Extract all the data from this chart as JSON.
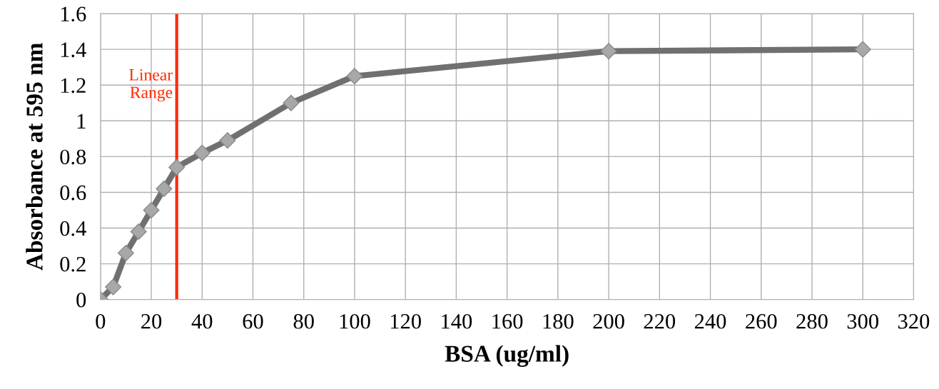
{
  "chart_data": {
    "type": "line",
    "xlabel": "BSA (ug/ml)",
    "ylabel": "Absorbance at 595 nm",
    "x": [
      0,
      5,
      10,
      15,
      20,
      25,
      30,
      40,
      50,
      75,
      100,
      200,
      300
    ],
    "series": [
      {
        "color": "#707070",
        "values": [
          0,
          0.07,
          0.26,
          0.38,
          0.5,
          0.62,
          0.74,
          0.82,
          0.89,
          1.1,
          1.25,
          1.39,
          1.4
        ]
      }
    ],
    "marker": "diamond",
    "grid": true,
    "xlim": [
      0,
      320
    ],
    "xticks": [
      0,
      20,
      40,
      60,
      80,
      100,
      120,
      140,
      160,
      180,
      200,
      220,
      240,
      260,
      280,
      300,
      320
    ],
    "ylim": [
      0,
      1.6
    ],
    "yticks": [
      0,
      0.2,
      0.4,
      0.6,
      0.8,
      1,
      1.2,
      1.4,
      1.6
    ],
    "ref_lines": [
      {
        "axis": "x",
        "value": 30,
        "label": "Linear Range",
        "color": "#ff2a00"
      }
    ]
  }
}
